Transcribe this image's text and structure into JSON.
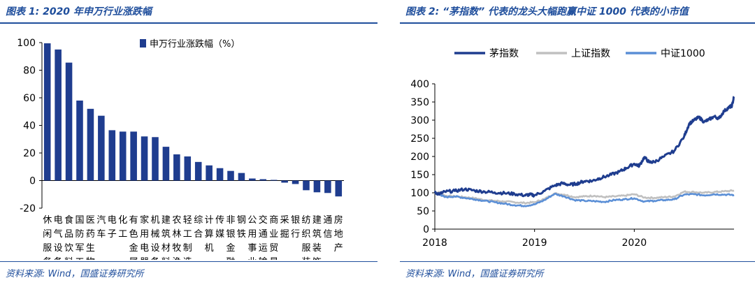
{
  "left": {
    "figure_title": "图表 1:  2020 年申万行业涨跌幅",
    "source": "资料来源:  Wind，国盛证券研究所"
  },
  "right": {
    "figure_title": "图表 2:   “茅指数” 代表的龙头大幅跑赢中证 1000 代表的小市值",
    "source": "资料来源:  Wind，国盛证券研究所"
  },
  "colors": {
    "dark_blue": "#1f3d8f",
    "gray": "#c0c0c0",
    "light_blue": "#5b8fd6",
    "title_blue": "#1f4e9c"
  },
  "chart_data": [
    {
      "type": "bar",
      "legend": "申万行业涨跌幅（%）",
      "legend_position": "top-right",
      "ylim": [
        -20,
        100
      ],
      "yticks": [
        -20,
        0,
        20,
        40,
        60,
        80,
        100
      ],
      "grid": false,
      "categories": [
        [
          "休",
          "闲",
          "服",
          "务"
        ],
        [
          "电",
          "气",
          "设",
          "备"
        ],
        [
          "食",
          "品",
          "饮",
          "料"
        ],
        [
          "国",
          "防",
          "军",
          "工"
        ],
        [
          "医",
          "药",
          "生",
          "物"
        ],
        [
          "汽",
          "车"
        ],
        [
          "电",
          "子"
        ],
        [
          "化",
          "工"
        ],
        [
          "有",
          "色",
          "金",
          "属"
        ],
        [
          "家",
          "用",
          "电",
          "器"
        ],
        [
          "机",
          "械",
          "设",
          "备"
        ],
        [
          "建",
          "筑",
          "材",
          "料"
        ],
        [
          "农",
          "林",
          "牧",
          "渔"
        ],
        [
          "轻",
          "工",
          "制",
          "造"
        ],
        [
          "综",
          "合"
        ],
        [
          "计",
          "算",
          "机"
        ],
        [
          "传",
          "媒"
        ],
        [
          "非",
          "银",
          "金",
          "融"
        ],
        [
          "钢",
          "铁"
        ],
        [
          "公",
          "用",
          "事",
          "业"
        ],
        [
          "交",
          "通",
          "运",
          "输"
        ],
        [
          "商",
          "业",
          "贸",
          "易"
        ],
        [
          "采",
          "掘"
        ],
        [
          "银",
          "行"
        ],
        [
          "纺",
          "织",
          "服",
          "装"
        ],
        [
          "建",
          "筑",
          "装",
          "饰"
        ],
        [
          "通",
          "信"
        ],
        [
          "房",
          "地",
          "产"
        ]
      ],
      "values": [
        99.5,
        95,
        85.5,
        58,
        52,
        47,
        36.5,
        35.5,
        35.5,
        32,
        31.5,
        24.5,
        19,
        17.5,
        13.5,
        11,
        9,
        7,
        5.5,
        1.5,
        1,
        0.5,
        -1.5,
        -2.5,
        -7,
        -8.5,
        -9,
        -11.5
      ]
    },
    {
      "type": "line",
      "ylim": [
        0,
        400
      ],
      "yticks": [
        0,
        50,
        100,
        150,
        200,
        250,
        300,
        350,
        400
      ],
      "x_ticks": [
        "2018",
        "2019",
        "2020"
      ],
      "legend_position": "top",
      "grid": false,
      "series": [
        {
          "name": "茅指数",
          "color": "#1f3d8f",
          "points": [
            [
              2018.0,
              100
            ],
            [
              2018.05,
              97
            ],
            [
              2018.1,
              103
            ],
            [
              2018.2,
              105
            ],
            [
              2018.3,
              110
            ],
            [
              2018.4,
              106
            ],
            [
              2018.5,
              103
            ],
            [
              2018.6,
              101
            ],
            [
              2018.7,
              99
            ],
            [
              2018.8,
              97
            ],
            [
              2018.9,
              93
            ],
            [
              2018.95,
              95
            ],
            [
              2019.0,
              93
            ],
            [
              2019.1,
              105
            ],
            [
              2019.2,
              120
            ],
            [
              2019.28,
              126
            ],
            [
              2019.35,
              122
            ],
            [
              2019.42,
              125
            ],
            [
              2019.5,
              132
            ],
            [
              2019.58,
              133
            ],
            [
              2019.65,
              140
            ],
            [
              2019.75,
              148
            ],
            [
              2019.85,
              158
            ],
            [
              2019.92,
              168
            ],
            [
              2020.0,
              180
            ],
            [
              2020.05,
              174
            ],
            [
              2020.1,
              198
            ],
            [
              2020.15,
              184
            ],
            [
              2020.2,
              185
            ],
            [
              2020.3,
              200
            ],
            [
              2020.4,
              215
            ],
            [
              2020.5,
              255
            ],
            [
              2020.55,
              290
            ],
            [
              2020.6,
              300
            ],
            [
              2020.65,
              308
            ],
            [
              2020.7,
              295
            ],
            [
              2020.75,
              302
            ],
            [
              2020.8,
              310
            ],
            [
              2020.85,
              305
            ],
            [
              2020.9,
              325
            ],
            [
              2020.95,
              335
            ],
            [
              2020.98,
              340
            ],
            [
              2021.0,
              365
            ]
          ]
        },
        {
          "name": "上证指数",
          "color": "#c0c0c0",
          "points": [
            [
              2018.0,
              100
            ],
            [
              2018.05,
              102
            ],
            [
              2018.1,
              92
            ],
            [
              2018.2,
              90
            ],
            [
              2018.3,
              88
            ],
            [
              2018.4,
              85
            ],
            [
              2018.5,
              80
            ],
            [
              2018.6,
              78
            ],
            [
              2018.7,
              76
            ],
            [
              2018.8,
              74
            ],
            [
              2018.9,
              72
            ],
            [
              2019.0,
              74
            ],
            [
              2019.1,
              83
            ],
            [
              2019.2,
              98
            ],
            [
              2019.3,
              95
            ],
            [
              2019.4,
              88
            ],
            [
              2019.5,
              90
            ],
            [
              2019.6,
              92
            ],
            [
              2019.7,
              88
            ],
            [
              2019.8,
              90
            ],
            [
              2019.9,
              92
            ],
            [
              2020.0,
              96
            ],
            [
              2020.1,
              87
            ],
            [
              2020.2,
              86
            ],
            [
              2020.3,
              88
            ],
            [
              2020.4,
              90
            ],
            [
              2020.5,
              103
            ],
            [
              2020.6,
              102
            ],
            [
              2020.7,
              100
            ],
            [
              2020.8,
              102
            ],
            [
              2020.9,
              104
            ],
            [
              2021.0,
              106
            ]
          ]
        },
        {
          "name": "中证1000",
          "color": "#5b8fd6",
          "points": [
            [
              2018.0,
              100
            ],
            [
              2018.05,
              96
            ],
            [
              2018.1,
              88
            ],
            [
              2018.2,
              90
            ],
            [
              2018.3,
              86
            ],
            [
              2018.4,
              82
            ],
            [
              2018.5,
              78
            ],
            [
              2018.6,
              74
            ],
            [
              2018.7,
              70
            ],
            [
              2018.8,
              66
            ],
            [
              2018.9,
              64
            ],
            [
              2019.0,
              68
            ],
            [
              2019.1,
              80
            ],
            [
              2019.2,
              97
            ],
            [
              2019.3,
              90
            ],
            [
              2019.4,
              80
            ],
            [
              2019.5,
              78
            ],
            [
              2019.6,
              77
            ],
            [
              2019.7,
              75
            ],
            [
              2019.8,
              80
            ],
            [
              2019.9,
              82
            ],
            [
              2020.0,
              85
            ],
            [
              2020.1,
              76
            ],
            [
              2020.2,
              78
            ],
            [
              2020.3,
              80
            ],
            [
              2020.4,
              82
            ],
            [
              2020.5,
              95
            ],
            [
              2020.6,
              96
            ],
            [
              2020.7,
              93
            ],
            [
              2020.8,
              96
            ],
            [
              2020.9,
              95
            ],
            [
              2021.0,
              94
            ]
          ]
        }
      ]
    }
  ]
}
